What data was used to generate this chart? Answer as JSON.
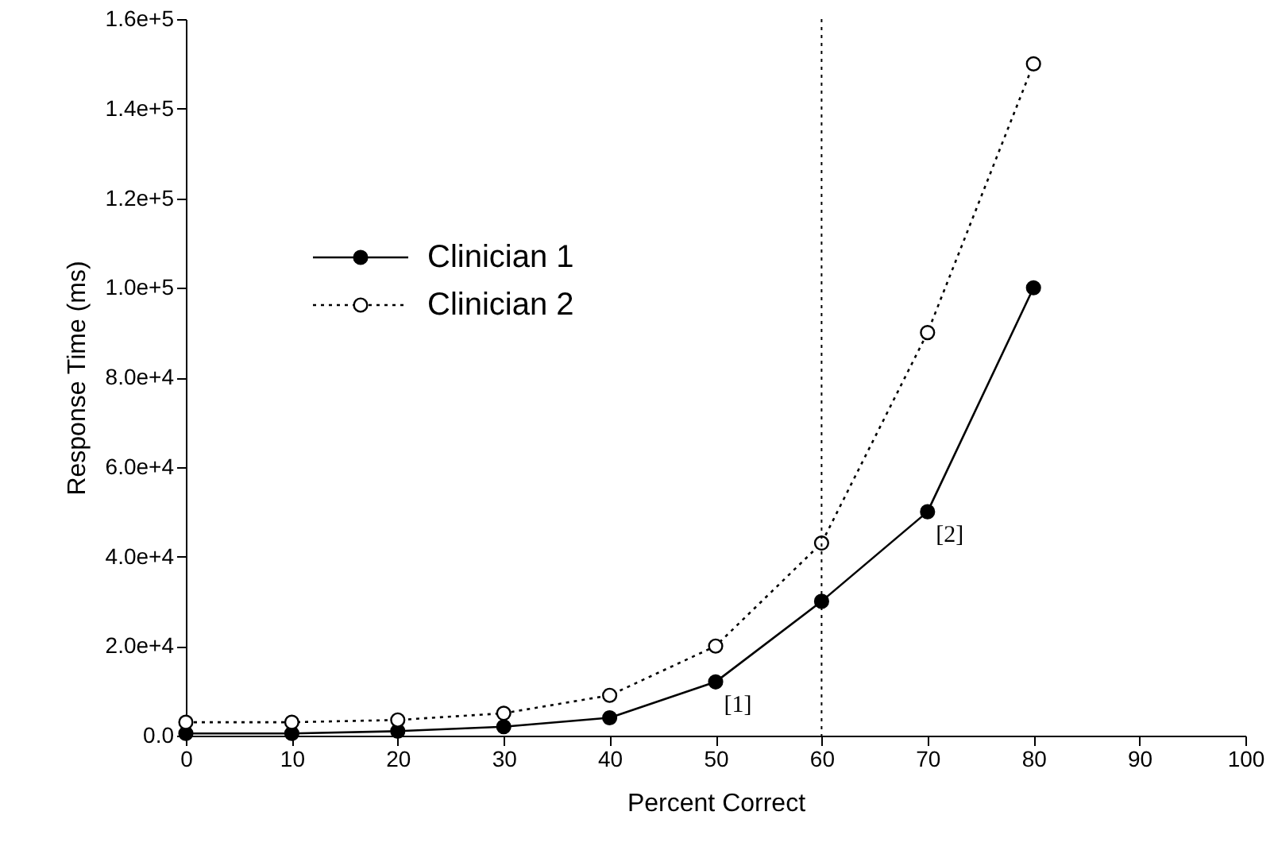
{
  "chart_data": {
    "type": "line",
    "xlabel": "Percent Correct",
    "ylabel": "Response Time (ms)",
    "x": [
      0,
      10,
      20,
      30,
      40,
      50,
      60,
      70,
      80
    ],
    "series": [
      {
        "name": "Clinician 1",
        "color": "#000000",
        "line_style": "solid",
        "marker": "circle",
        "values": [
          500,
          500,
          1000,
          2000,
          4000,
          12000,
          30000,
          50000,
          100000
        ]
      },
      {
        "name": "Clinician 2",
        "color": "#000000",
        "line_style": "dotted",
        "marker": "circle",
        "values": [
          3000,
          3000,
          3500,
          5000,
          9000,
          20000,
          43000,
          90000,
          150000
        ]
      }
    ],
    "xlim": [
      0,
      100
    ],
    "xticks": [
      0,
      10,
      20,
      30,
      40,
      50,
      60,
      70,
      80,
      90,
      100
    ],
    "ylim": [
      0,
      160000
    ],
    "yticks": [
      {
        "value": 0,
        "label": "0.0"
      },
      {
        "value": 20000,
        "label": "2.0e+4"
      },
      {
        "value": 40000,
        "label": "4.0e+4"
      },
      {
        "value": 60000,
        "label": "6.0e+4"
      },
      {
        "value": 80000,
        "label": "8.0e+4"
      },
      {
        "value": 100000,
        "label": "1.0e+5"
      },
      {
        "value": 120000,
        "label": "1.2e+5"
      },
      {
        "value": 140000,
        "label": "1.4e+5"
      },
      {
        "value": 160000,
        "label": "1.6e+5"
      }
    ],
    "ref_lines": [
      {
        "axis": "x",
        "value": 60,
        "line_style": "dotted",
        "color": "#000000"
      }
    ],
    "annotations": [
      {
        "text": "[1]",
        "x": 50,
        "y": 12000
      },
      {
        "text": "[2]",
        "x": 70,
        "y": 50000
      }
    ],
    "grid": false,
    "legend": "top left"
  }
}
